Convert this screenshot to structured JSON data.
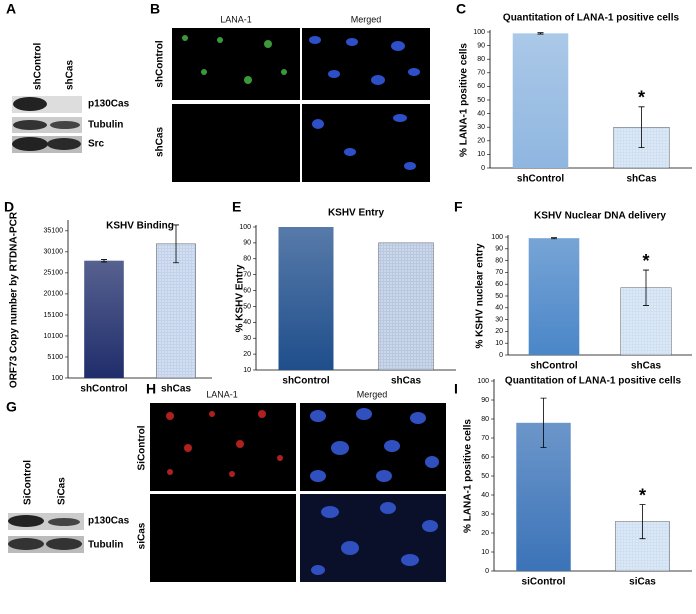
{
  "panels": {
    "labels": [
      "A",
      "B",
      "C",
      "D",
      "E",
      "F",
      "G",
      "H",
      "I"
    ]
  },
  "blot_a": {
    "lanes": [
      "shControl",
      "shCas"
    ],
    "bands": [
      "p130Cas",
      "Tubulin",
      "Src"
    ]
  },
  "micrographs_b": {
    "columns": [
      "LANA-1",
      "Merged"
    ],
    "rows": [
      "shControl",
      "shCas"
    ]
  },
  "blot_g": {
    "lanes": [
      "SiControl",
      "SiCas"
    ],
    "bands": [
      "p130Cas",
      "Tubulin"
    ]
  },
  "micrographs_h": {
    "columns": [
      "LANA-1",
      "Merged"
    ],
    "rows": [
      "SiControl",
      "siCas"
    ]
  },
  "chart_data": [
    {
      "type": "bar",
      "title": "Quantitation of LANA-1 positive cells",
      "y_label": "% LANA-1 positive  cells",
      "categories": [
        "shControl",
        "shCas"
      ],
      "values": [
        99,
        30
      ],
      "errors": [
        0.5,
        15
      ],
      "colors": [
        "#8fb6e0",
        "#cfe0f2"
      ],
      "ylim": [
        0,
        100
      ],
      "yticks": [
        0,
        10,
        20,
        30,
        40,
        50,
        60,
        70,
        80,
        90,
        100
      ],
      "annotation": "*"
    },
    {
      "type": "bar",
      "title": "KSHV Binding",
      "y_label": "ORF73 Copy number by RTDNA-PCR",
      "categories": [
        "shControl",
        "shCas"
      ],
      "values": [
        28000,
        32000
      ],
      "errors": [
        300,
        4500
      ],
      "colors": [
        "#1f2d6b",
        "#c2d2ea"
      ],
      "ylim": [
        100,
        37200
      ],
      "yticks": [
        100,
        5100,
        10100,
        15100,
        20100,
        25100,
        30100,
        35100
      ]
    },
    {
      "type": "bar",
      "title": "KSHV Entry",
      "y_label": "% KSHV Entry",
      "categories": [
        "shControl",
        "shCas"
      ],
      "values": [
        100,
        90
      ],
      "colors": [
        "#1f4e8c",
        "#b8c8e0"
      ],
      "ylim": [
        10,
        100
      ],
      "yticks": [
        10,
        20,
        30,
        40,
        50,
        60,
        70,
        80,
        90,
        100
      ]
    },
    {
      "type": "bar",
      "title": "KSHV Nuclear DNA delivery",
      "y_label": "% KSHV nuclear entry",
      "categories": [
        "shControl",
        "shCas"
      ],
      "values": [
        99,
        57
      ],
      "errors": [
        0.5,
        15
      ],
      "colors": [
        "#4a86c8",
        "#cfe0f2"
      ],
      "ylim": [
        0,
        100
      ],
      "yticks": [
        0,
        10,
        20,
        30,
        40,
        50,
        60,
        70,
        80,
        90,
        100
      ],
      "annotation": "*"
    },
    {
      "type": "bar",
      "title": "Quantitation of LANA-1 positive cells",
      "y_label": "% LANA-1 positive  cells",
      "categories": [
        "siControl",
        "siCas"
      ],
      "values": [
        78,
        26
      ],
      "errors": [
        13,
        9
      ],
      "colors": [
        "#3b73b8",
        "#cfe0f2"
      ],
      "ylim": [
        0,
        100
      ],
      "yticks": [
        0,
        10,
        20,
        30,
        40,
        50,
        60,
        70,
        80,
        90,
        100
      ],
      "annotation": "*"
    }
  ]
}
